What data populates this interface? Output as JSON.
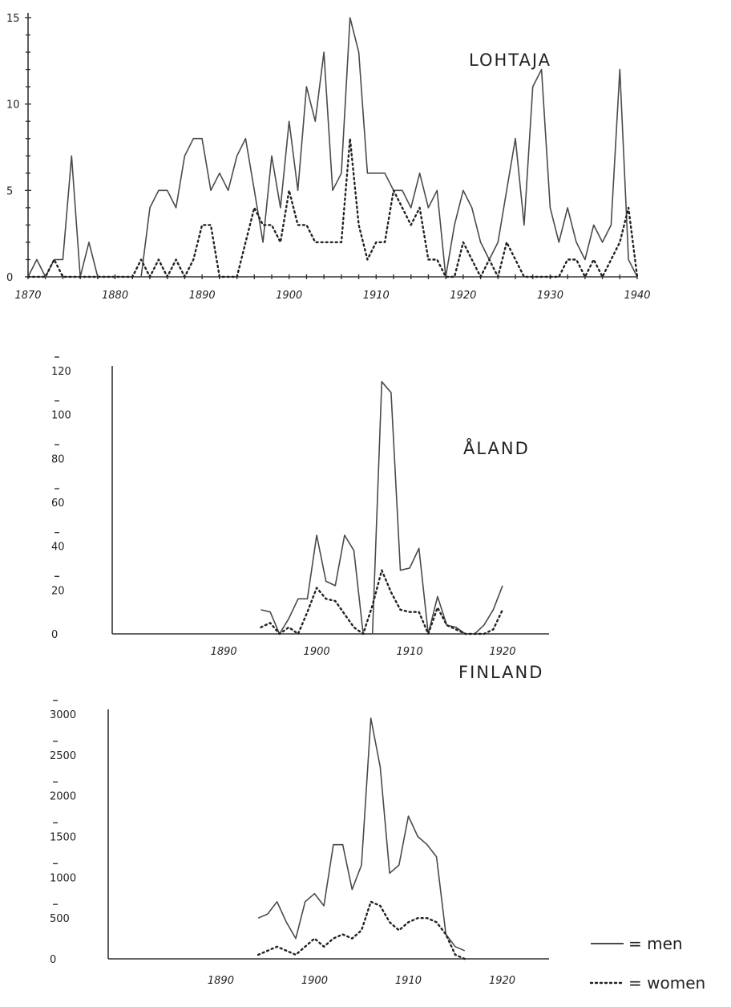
{
  "chart_data": [
    {
      "type": "line",
      "title": "LOHTAJA",
      "xlabel": "",
      "ylabel": "",
      "xlim": [
        1870,
        1940
      ],
      "ylim": [
        0,
        15
      ],
      "x_ticks": [
        1870,
        1880,
        1890,
        1900,
        1910,
        1920,
        1930,
        1940
      ],
      "y_ticks": [
        0,
        5,
        10,
        15
      ],
      "x_tick_labels": [
        "1870",
        "1880",
        "1890",
        "1900",
        "1910",
        "1920",
        "1930",
        "1940"
      ],
      "y_tick_labels": [
        "0",
        "5",
        "10",
        "15"
      ],
      "series": [
        {
          "name": "men",
          "style": "solid",
          "x": [
            1870,
            1871,
            1872,
            1873,
            1874,
            1875,
            1876,
            1877,
            1878,
            1883,
            1884,
            1885,
            1886,
            1887,
            1888,
            1889,
            1890,
            1891,
            1892,
            1893,
            1894,
            1895,
            1896,
            1897,
            1898,
            1899,
            1900,
            1901,
            1902,
            1903,
            1904,
            1905,
            1906,
            1907,
            1908,
            1909,
            1910,
            1911,
            1912,
            1913,
            1914,
            1915,
            1916,
            1917,
            1918,
            1919,
            1920,
            1921,
            1922,
            1923,
            1924,
            1925,
            1926,
            1927,
            1928,
            1929,
            1930,
            1931,
            1932,
            1933,
            1934,
            1935,
            1936,
            1937,
            1938,
            1939,
            1940
          ],
          "y": [
            0,
            1,
            0,
            1,
            1,
            7,
            0,
            2,
            0,
            0,
            4,
            5,
            5,
            4,
            7,
            8,
            8,
            5,
            6,
            5,
            7,
            8,
            5,
            2,
            7,
            4,
            9,
            5,
            11,
            9,
            13,
            5,
            6,
            15,
            13,
            6,
            6,
            6,
            5,
            5,
            4,
            6,
            4,
            5,
            0,
            3,
            5,
            4,
            2,
            1,
            2,
            5,
            8,
            3,
            11,
            12,
            4,
            2,
            4,
            2,
            1,
            3,
            2,
            3,
            12,
            1,
            0
          ]
        },
        {
          "name": "women",
          "style": "dotted",
          "x": [
            1870,
            1871,
            1872,
            1873,
            1874,
            1875,
            1882,
            1883,
            1884,
            1885,
            1886,
            1887,
            1888,
            1889,
            1890,
            1891,
            1892,
            1894,
            1895,
            1896,
            1897,
            1898,
            1899,
            1900,
            1901,
            1902,
            1903,
            1904,
            1905,
            1906,
            1907,
            1908,
            1909,
            1910,
            1911,
            1912,
            1913,
            1914,
            1915,
            1916,
            1917,
            1918,
            1919,
            1920,
            1921,
            1922,
            1923,
            1924,
            1925,
            1926,
            1927,
            1931,
            1932,
            1933,
            1934,
            1935,
            1936,
            1937,
            1938,
            1939,
            1940
          ],
          "y": [
            0,
            0,
            0,
            1,
            0,
            0,
            0,
            1,
            0,
            1,
            0,
            1,
            0,
            1,
            3,
            3,
            0,
            0,
            2,
            4,
            3,
            3,
            2,
            5,
            3,
            3,
            2,
            2,
            2,
            2,
            8,
            3,
            1,
            2,
            2,
            5,
            4,
            3,
            4,
            1,
            1,
            0,
            0,
            2,
            1,
            0,
            1,
            0,
            2,
            1,
            0,
            0,
            1,
            1,
            0,
            1,
            0,
            1,
            2,
            4,
            0
          ]
        }
      ]
    },
    {
      "type": "line",
      "title": "ÅLAND",
      "xlabel": "",
      "ylabel": "",
      "xlim": [
        1878,
        1925
      ],
      "ylim": [
        0,
        120
      ],
      "x_ticks": [
        1890,
        1900,
        1910,
        1920
      ],
      "y_ticks": [
        0,
        20,
        40,
        60,
        80,
        100,
        120
      ],
      "x_tick_labels": [
        "1890",
        "1900",
        "1910",
        "1920"
      ],
      "y_tick_labels": [
        "0",
        "20",
        "40",
        "60",
        "80",
        "100",
        "120"
      ],
      "series": [
        {
          "name": "men",
          "style": "solid",
          "x": [
            1894,
            1895,
            1896,
            1897,
            1898,
            1899,
            1900,
            1901,
            1902,
            1903,
            1904,
            1905,
            1906,
            1907,
            1908,
            1909,
            1910,
            1911,
            1912,
            1913,
            1914,
            1915,
            1916,
            1917,
            1918,
            1919,
            1920
          ],
          "y": [
            11,
            10,
            0,
            7,
            16,
            16,
            45,
            24,
            22,
            45,
            38,
            0,
            0,
            115,
            110,
            29,
            30,
            39,
            0,
            17,
            4,
            3,
            0,
            0,
            4,
            11,
            22
          ]
        },
        {
          "name": "women",
          "style": "dotted",
          "x": [
            1894,
            1895,
            1896,
            1897,
            1898,
            1899,
            1900,
            1901,
            1902,
            1903,
            1904,
            1905,
            1906,
            1907,
            1908,
            1909,
            1910,
            1911,
            1912,
            1913,
            1914,
            1915,
            1916,
            1917,
            1918,
            1919,
            1920
          ],
          "y": [
            3,
            5,
            0,
            3,
            0,
            10,
            21,
            16,
            15,
            9,
            3,
            0,
            13,
            29,
            19,
            11,
            10,
            10,
            0,
            12,
            4,
            2,
            0,
            0,
            0,
            2,
            11
          ]
        }
      ]
    },
    {
      "type": "line",
      "title": "FINLAND",
      "xlabel": "",
      "ylabel": "",
      "xlim": [
        1878,
        1925
      ],
      "ylim": [
        0,
        3000
      ],
      "x_ticks": [
        1890,
        1900,
        1910,
        1920
      ],
      "y_ticks": [
        0,
        500,
        1000,
        1500,
        2000,
        2500,
        3000
      ],
      "x_tick_labels": [
        "1890",
        "1900",
        "1910",
        "1920"
      ],
      "y_tick_labels": [
        "0",
        "500",
        "1000",
        "1500",
        "2000",
        "2500",
        "3000"
      ],
      "series": [
        {
          "name": "men",
          "style": "solid",
          "x": [
            1894,
            1895,
            1896,
            1897,
            1898,
            1899,
            1900,
            1901,
            1902,
            1903,
            1904,
            1905,
            1906,
            1907,
            1908,
            1909,
            1910,
            1911,
            1912,
            1913,
            1914,
            1915,
            1916
          ],
          "y": [
            500,
            550,
            700,
            450,
            250,
            700,
            800,
            650,
            1400,
            1400,
            850,
            1150,
            2950,
            2350,
            1050,
            1150,
            1750,
            1500,
            1400,
            1250,
            300,
            150,
            100
          ]
        },
        {
          "name": "women",
          "style": "dotted",
          "x": [
            1894,
            1895,
            1896,
            1897,
            1898,
            1899,
            1900,
            1901,
            1902,
            1903,
            1904,
            1905,
            1906,
            1907,
            1908,
            1909,
            1910,
            1911,
            1912,
            1913,
            1914,
            1915,
            1916
          ],
          "y": [
            50,
            100,
            150,
            100,
            50,
            150,
            250,
            150,
            250,
            300,
            250,
            350,
            700,
            650,
            450,
            350,
            450,
            500,
            500,
            450,
            300,
            50,
            0
          ]
        }
      ]
    }
  ],
  "legend": {
    "men_label": "= men",
    "women_label": "= women"
  }
}
